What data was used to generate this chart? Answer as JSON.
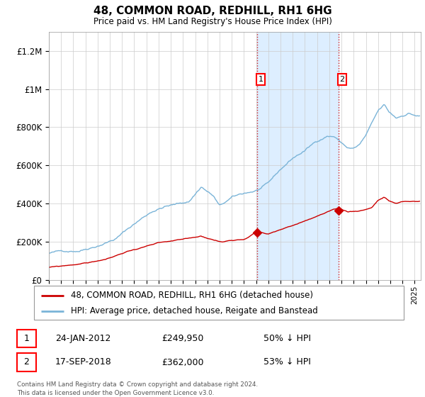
{
  "title": "48, COMMON ROAD, REDHILL, RH1 6HG",
  "subtitle": "Price paid vs. HM Land Registry's House Price Index (HPI)",
  "legend_line1": "48, COMMON ROAD, REDHILL, RH1 6HG (detached house)",
  "legend_line2": "HPI: Average price, detached house, Reigate and Banstead",
  "annotation1_date": "24-JAN-2012",
  "annotation1_price": "£249,950",
  "annotation1_hpi": "50% ↓ HPI",
  "annotation1_year": 2012.07,
  "annotation1_value": 249950,
  "annotation2_date": "17-SEP-2018",
  "annotation2_price": "£362,000",
  "annotation2_hpi": "53% ↓ HPI",
  "annotation2_year": 2018.75,
  "annotation2_value": 362000,
  "hpi_color": "#7ab4d8",
  "price_color": "#cc0000",
  "shade_color": "#ddeeff",
  "dashed_line_color": "#cc0000",
  "footnote1": "Contains HM Land Registry data © Crown copyright and database right 2024.",
  "footnote2": "This data is licensed under the Open Government Licence v3.0.",
  "ylim": [
    0,
    1300000
  ],
  "xlim_start": 1995.0,
  "xlim_end": 2025.5
}
